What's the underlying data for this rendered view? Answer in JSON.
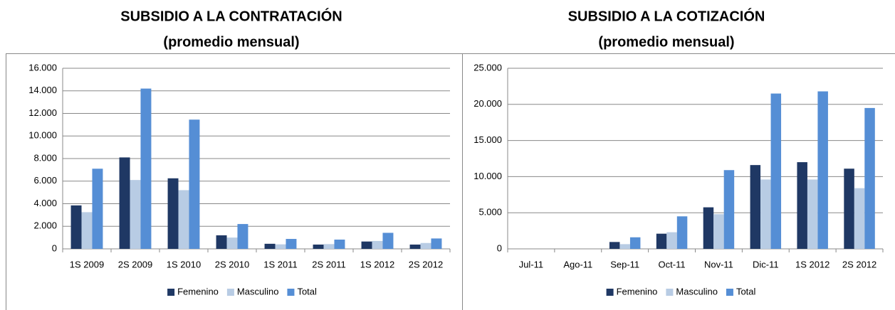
{
  "chart_data": [
    {
      "type": "bar",
      "title": "SUBSIDIO A LA CONTRATACIÓN",
      "subtitle": "(promedio mensual)",
      "categories": [
        "1S 2009",
        "2S 2009",
        "1S 2010",
        "2S 2010",
        "1S 2011",
        "2S 2011",
        "1S 2012",
        "2S 2012"
      ],
      "series": [
        {
          "name": "Femenino",
          "color": "#1f3864",
          "values": [
            3850,
            8100,
            6250,
            1200,
            450,
            380,
            650,
            380
          ]
        },
        {
          "name": "Masculino",
          "color": "#b8cce4",
          "values": [
            3250,
            6100,
            5200,
            1000,
            400,
            420,
            700,
            520
          ]
        },
        {
          "name": "Total",
          "color": "#558ed5",
          "values": [
            7100,
            14200,
            11450,
            2200,
            880,
            820,
            1420,
            920
          ]
        }
      ],
      "ylim": [
        0,
        16000
      ],
      "yticks": [
        0,
        {
          "value": 2000,
          "label": "2.000"
        },
        {
          "value": 4000,
          "label": "4.000"
        },
        {
          "value": 6000,
          "label": "6.000"
        },
        {
          "value": 8000,
          "label": "8.000"
        },
        {
          "value": 10000,
          "label": "10.000"
        },
        {
          "value": 12000,
          "label": "12.000"
        },
        {
          "value": 14000,
          "label": "14.000"
        },
        {
          "value": 16000,
          "label": "16.000"
        }
      ],
      "grid": true,
      "legend": "bottom"
    },
    {
      "type": "bar",
      "title": "SUBSIDIO A LA COTIZACIÓN",
      "subtitle": "(promedio mensual)",
      "categories": [
        "Jul-11",
        "Ago-11",
        "Sep-11",
        "Oct-11",
        "Nov-11",
        "Dic-11",
        "1S 2012",
        "2S 2012"
      ],
      "series": [
        {
          "name": "Femenino",
          "color": "#1f3864",
          "values": [
            0,
            0,
            950,
            2100,
            5750,
            11600,
            12000,
            11100
          ]
        },
        {
          "name": "Masculino",
          "color": "#b8cce4",
          "values": [
            0,
            0,
            650,
            2300,
            4800,
            9600,
            9600,
            8400
          ]
        },
        {
          "name": "Total",
          "color": "#558ed5",
          "values": [
            0,
            0,
            1600,
            4500,
            10900,
            21500,
            21800,
            19500
          ]
        }
      ],
      "ylim": [
        0,
        25000
      ],
      "yticks": [
        0,
        {
          "value": 5000,
          "label": "5.000"
        },
        {
          "value": 10000,
          "label": "10.000"
        },
        {
          "value": 15000,
          "label": "15.000"
        },
        {
          "value": 20000,
          "label": "20.000"
        },
        {
          "value": 25000,
          "label": "25.000"
        }
      ],
      "grid": true,
      "legend": "bottom"
    }
  ]
}
